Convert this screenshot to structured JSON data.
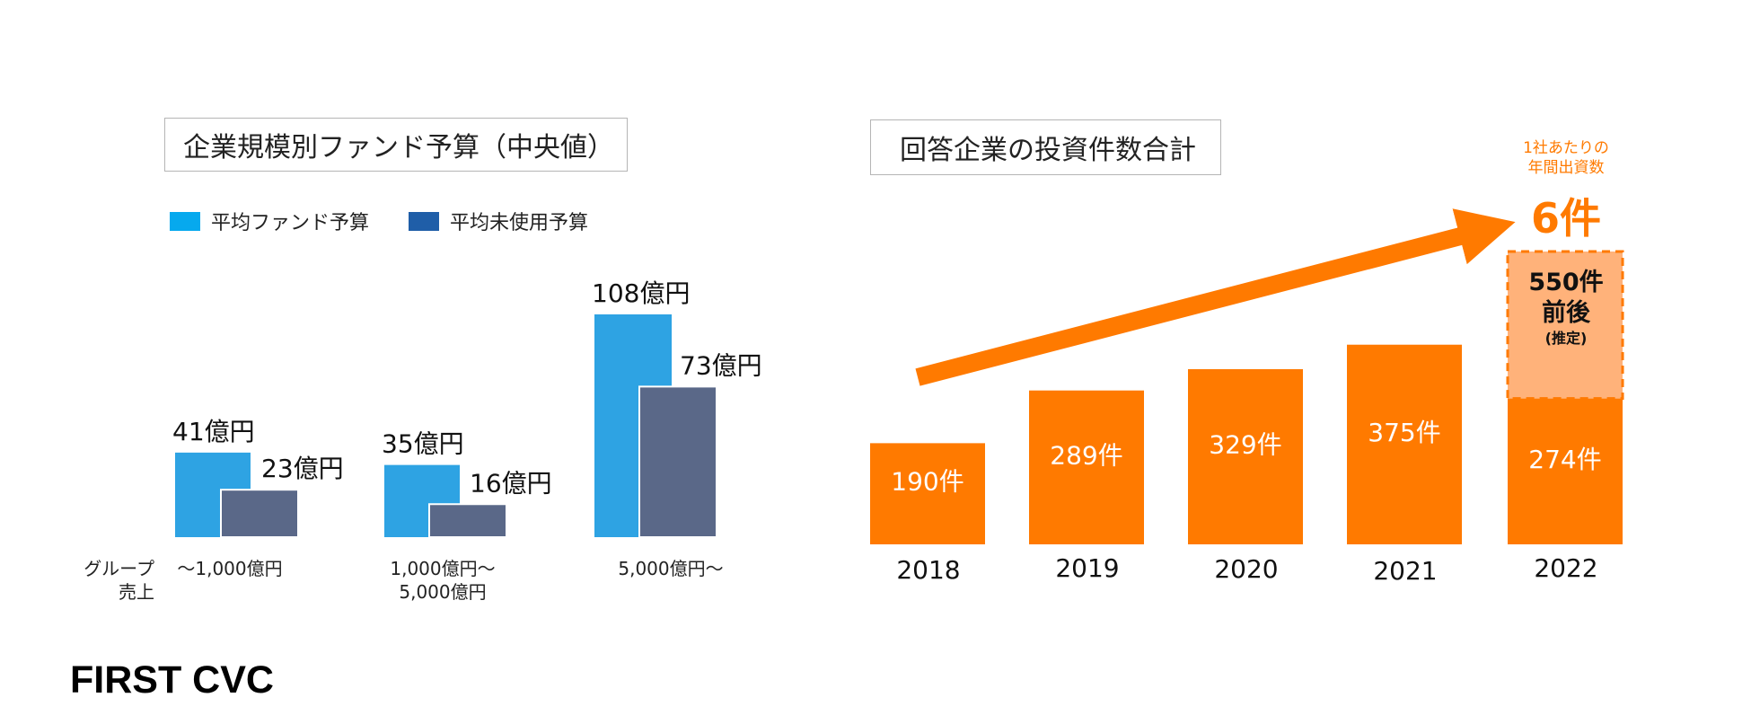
{
  "left_panel": {
    "title": "企業規模別ファンド予算（中央値）",
    "row_label_line1": "グループ",
    "row_label_line2": "売上"
  },
  "right_panel": {
    "title": "回答企業の投資件数合計",
    "note_line1": "1社あたりの",
    "note_line2": "年間出資数",
    "note_value": "6件",
    "estimate_line1": "550件",
    "estimate_line2": "前後",
    "estimate_line3": "(推定)"
  },
  "footer": {
    "brand": "FIRST CVC"
  },
  "colors": {
    "avg_budget": "#2ea3e3",
    "unused_budget": "#5a6888",
    "legend_unused": "#1f5ea8",
    "orange": "#ff7a00",
    "estimate_fill": "#ffb27a",
    "estimate_border": "#ff7a00"
  },
  "chart_data": [
    {
      "type": "bar",
      "title": "企業規模別ファンド予算（中央値）",
      "categories": [
        "〜1,000億円",
        "1,000億円〜\n5,000億円",
        "5,000億円〜"
      ],
      "category_lines": [
        [
          "〜1,000億円"
        ],
        [
          "1,000億円〜",
          "5,000億円"
        ],
        [
          "5,000億円〜"
        ]
      ],
      "series": [
        {
          "name": "平均ファンド予算",
          "values": [
            41,
            35,
            108
          ],
          "labels": [
            "41億円",
            "35億円",
            "108億円"
          ]
        },
        {
          "name": "平均未使用予算",
          "values": [
            23,
            16,
            73
          ],
          "labels": [
            "23億円",
            "16億円",
            "73億円"
          ]
        }
      ],
      "ylim": [
        0,
        108
      ],
      "legend": "top-left",
      "grid": false
    },
    {
      "type": "bar",
      "title": "回答企業の投資件数合計",
      "categories": [
        "2018",
        "2019",
        "2020",
        "2021",
        "2022"
      ],
      "values": [
        190,
        289,
        329,
        375,
        274
      ],
      "labels": [
        "190件",
        "289件",
        "329件",
        "375件",
        "274件"
      ],
      "estimated_total_2022": 550,
      "ylim": [
        0,
        550
      ],
      "grid": false
    }
  ]
}
